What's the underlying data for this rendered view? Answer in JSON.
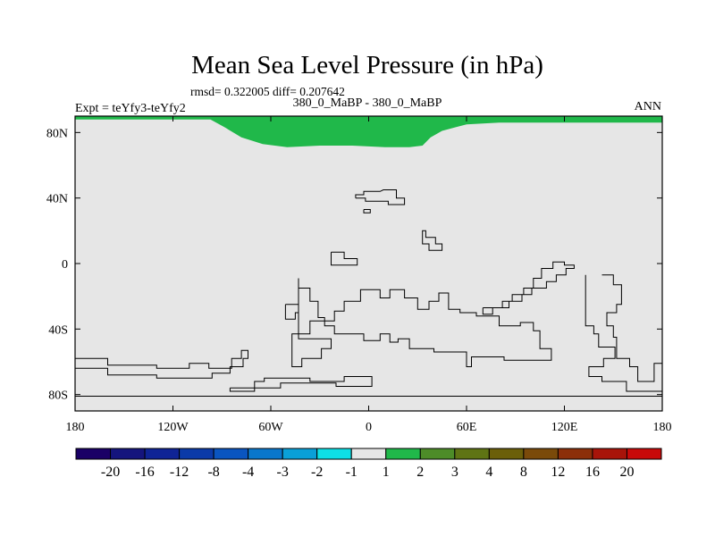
{
  "chart_data": {
    "type": "heatmap",
    "title": "Mean Sea Level Pressure (in hPa)",
    "subtitle_stats": "rmsd= 0.322005 diff= 0.207642",
    "left_label": "Expt = teYfy3-teYfy2",
    "center_label": "380_0_MaBP - 380_0_MaBP",
    "right_label": "ANN",
    "x_range": [
      -180,
      180
    ],
    "y_range": [
      -90,
      90
    ],
    "x_ticks": [
      {
        "value": -180,
        "label": "180"
      },
      {
        "value": -120,
        "label": "120W"
      },
      {
        "value": -60,
        "label": "60W"
      },
      {
        "value": 0,
        "label": "0"
      },
      {
        "value": 60,
        "label": "60E"
      },
      {
        "value": 120,
        "label": "120E"
      },
      {
        "value": 180,
        "label": "180"
      }
    ],
    "y_ticks": [
      {
        "value": 80,
        "label": "80N"
      },
      {
        "value": 40,
        "label": "40N"
      },
      {
        "value": 0,
        "label": "0"
      },
      {
        "value": -40,
        "label": "40S"
      },
      {
        "value": -80,
        "label": "80S"
      }
    ],
    "field_background": {
      "range": [
        -1,
        1
      ],
      "color": "#e6e6e6"
    },
    "field_region": {
      "range": [
        1,
        2
      ],
      "color": "#20b84a",
      "description_lon_lat_outline": [
        [
          -180,
          90
        ],
        [
          -180,
          88
        ],
        [
          -97,
          88
        ],
        [
          -88,
          83
        ],
        [
          -78,
          77
        ],
        [
          -65,
          73
        ],
        [
          -50,
          71
        ],
        [
          -30,
          72
        ],
        [
          -10,
          72
        ],
        [
          10,
          71
        ],
        [
          25,
          71
        ],
        [
          33,
          72
        ],
        [
          38,
          77
        ],
        [
          45,
          81
        ],
        [
          60,
          85
        ],
        [
          80,
          86
        ],
        [
          120,
          86
        ],
        [
          180,
          86
        ],
        [
          180,
          90
        ]
      ]
    },
    "colorbar": {
      "colors": [
        "#1a0066",
        "#15157d",
        "#0f2496",
        "#0b3aa8",
        "#0a55c0",
        "#0a77cc",
        "#0aa0d8",
        "#0ee0e6",
        "#e6e6e6",
        "#20b84a",
        "#4d8c28",
        "#5f7414",
        "#6b5f0a",
        "#7a4a0a",
        "#8c2f0a",
        "#a8140a",
        "#c80a0a"
      ],
      "labels": [
        "-20",
        "-16",
        "-12",
        "-8",
        "-4",
        "-3",
        "-2",
        "-1",
        "1",
        "2",
        "3",
        "4",
        "8",
        "12",
        "16",
        "20"
      ]
    },
    "coastlines": [
      [
        [
          -8,
          40
        ],
        [
          -8,
          42
        ],
        [
          -3,
          42
        ],
        [
          -3,
          44
        ],
        [
          7,
          44
        ],
        [
          9,
          45
        ],
        [
          17,
          45
        ],
        [
          17,
          40
        ],
        [
          22,
          40
        ],
        [
          22,
          36
        ],
        [
          12,
          36
        ],
        [
          12,
          38
        ],
        [
          -2,
          38
        ],
        [
          -2,
          40
        ],
        [
          -8,
          40
        ]
      ],
      [
        [
          -3,
          33
        ],
        [
          1,
          33
        ],
        [
          1,
          31
        ],
        [
          -3,
          31
        ],
        [
          -3,
          33
        ]
      ],
      [
        [
          33,
          16
        ],
        [
          33,
          20
        ],
        [
          35,
          20
        ],
        [
          35,
          16
        ],
        [
          41,
          16
        ],
        [
          41,
          12
        ],
        [
          45,
          12
        ],
        [
          45,
          8
        ],
        [
          37,
          8
        ],
        [
          37,
          12
        ],
        [
          33,
          12
        ],
        [
          33,
          16
        ]
      ],
      [
        [
          -23,
          7
        ],
        [
          -15,
          7
        ],
        [
          -15,
          3
        ],
        [
          -7,
          3
        ],
        [
          -7,
          -1
        ],
        [
          -23,
          -1
        ],
        [
          -23,
          7
        ]
      ],
      [
        [
          -43,
          -9
        ],
        [
          -43,
          -15
        ],
        [
          -36,
          -15
        ],
        [
          -36,
          -23
        ],
        [
          -31,
          -23
        ],
        [
          -31,
          -33
        ],
        [
          -27,
          -33
        ],
        [
          -27,
          -38
        ],
        [
          -21,
          -38
        ],
        [
          -21,
          -43
        ],
        [
          -3,
          -43
        ],
        [
          -3,
          -47
        ],
        [
          7,
          -47
        ],
        [
          7,
          -43
        ],
        [
          13,
          -43
        ],
        [
          13,
          -48
        ],
        [
          18,
          -48
        ],
        [
          18,
          -46
        ],
        [
          25,
          -46
        ],
        [
          25,
          -52
        ],
        [
          40,
          -52
        ],
        [
          40,
          -54
        ],
        [
          60,
          -54
        ],
        [
          60,
          -63
        ],
        [
          63,
          -63
        ],
        [
          63,
          -57
        ],
        [
          83,
          -57
        ],
        [
          83,
          -59
        ],
        [
          112,
          -59
        ],
        [
          112,
          -52
        ],
        [
          105,
          -52
        ],
        [
          105,
          -41
        ],
        [
          101,
          -41
        ],
        [
          101,
          -36
        ],
        [
          93,
          -36
        ],
        [
          93,
          -38
        ],
        [
          80,
          -38
        ],
        [
          80,
          -32
        ],
        [
          66,
          -32
        ],
        [
          66,
          -30
        ],
        [
          56,
          -30
        ],
        [
          56,
          -28
        ],
        [
          49,
          -28
        ],
        [
          49,
          -18
        ],
        [
          43,
          -18
        ],
        [
          43,
          -23
        ],
        [
          37,
          -23
        ],
        [
          37,
          -28
        ],
        [
          30,
          -28
        ],
        [
          30,
          -21
        ],
        [
          22,
          -21
        ],
        [
          22,
          -16
        ],
        [
          13,
          -16
        ],
        [
          13,
          -21
        ],
        [
          7,
          -21
        ],
        [
          7,
          -16
        ],
        [
          -5,
          -16
        ],
        [
          -5,
          -23
        ],
        [
          -15,
          -23
        ],
        [
          -15,
          -29
        ],
        [
          -21,
          -29
        ],
        [
          -21,
          -35
        ],
        [
          -36,
          -35
        ],
        [
          -36,
          -43
        ],
        [
          -47,
          -43
        ],
        [
          -47,
          -63
        ],
        [
          -41,
          -63
        ],
        [
          -41,
          -58
        ],
        [
          -29,
          -58
        ],
        [
          -29,
          -52
        ],
        [
          -23,
          -52
        ],
        [
          -23,
          -46
        ],
        [
          -43,
          -46
        ],
        [
          -43,
          -9
        ]
      ],
      [
        [
          -51,
          -25
        ],
        [
          -51,
          -34
        ],
        [
          -45,
          -34
        ],
        [
          -45,
          -30
        ],
        [
          -43,
          -30
        ],
        [
          -43,
          -25
        ],
        [
          -51,
          -25
        ]
      ],
      [
        [
          70,
          -27
        ],
        [
          82,
          -27
        ],
        [
          82,
          -23
        ],
        [
          88,
          -23
        ],
        [
          88,
          -19
        ],
        [
          95,
          -19
        ],
        [
          95,
          -15
        ],
        [
          101,
          -15
        ],
        [
          101,
          -9
        ],
        [
          106,
          -9
        ],
        [
          106,
          -3
        ],
        [
          113,
          -3
        ],
        [
          113,
          1
        ],
        [
          120,
          1
        ],
        [
          120,
          -1
        ],
        [
          126,
          -1
        ],
        [
          126,
          -3
        ],
        [
          121,
          -3
        ],
        [
          121,
          -7
        ],
        [
          115,
          -7
        ],
        [
          115,
          -11
        ],
        [
          109,
          -11
        ],
        [
          109,
          -15
        ],
        [
          100,
          -15
        ],
        [
          100,
          -19
        ],
        [
          94,
          -19
        ],
        [
          94,
          -23
        ],
        [
          86,
          -23
        ],
        [
          86,
          -27
        ],
        [
          76,
          -27
        ],
        [
          76,
          -31
        ],
        [
          70,
          -31
        ],
        [
          70,
          -27
        ]
      ],
      [
        [
          -180,
          -58
        ],
        [
          -160,
          -58
        ],
        [
          -160,
          -62
        ],
        [
          -130,
          -62
        ],
        [
          -130,
          -64
        ],
        [
          -110,
          -64
        ],
        [
          -110,
          -61
        ],
        [
          -98,
          -61
        ],
        [
          -98,
          -64
        ],
        [
          -84,
          -64
        ],
        [
          -84,
          -58
        ],
        [
          -78,
          -58
        ],
        [
          -78,
          -53
        ],
        [
          -74,
          -53
        ],
        [
          -74,
          -58
        ],
        [
          -77,
          -58
        ],
        [
          -77,
          -63
        ],
        [
          -85,
          -63
        ],
        [
          -85,
          -67
        ],
        [
          -96,
          -67
        ],
        [
          -96,
          -70
        ],
        [
          -130,
          -70
        ],
        [
          -130,
          -68
        ],
        [
          -160,
          -68
        ],
        [
          -160,
          -64
        ],
        [
          -180,
          -64
        ]
      ],
      [
        [
          -85,
          -76
        ],
        [
          -70,
          -76
        ],
        [
          -70,
          -72
        ],
        [
          -64,
          -72
        ],
        [
          -64,
          -70
        ],
        [
          -36,
          -70
        ],
        [
          -36,
          -72
        ],
        [
          -15,
          -72
        ],
        [
          -15,
          -69
        ],
        [
          2,
          -69
        ],
        [
          2,
          -75
        ],
        [
          -20,
          -75
        ],
        [
          -20,
          -73
        ],
        [
          -54,
          -73
        ],
        [
          -54,
          -76
        ],
        [
          -70,
          -76
        ],
        [
          -70,
          -78
        ],
        [
          -85,
          -78
        ],
        [
          -85,
          -76
        ]
      ],
      [
        [
          -180,
          -81
        ],
        [
          180,
          -81
        ]
      ],
      [
        [
          133,
          -7
        ],
        [
          133,
          -38
        ],
        [
          138,
          -38
        ],
        [
          138,
          -43
        ],
        [
          141,
          -43
        ],
        [
          141,
          -51
        ],
        [
          151,
          -51
        ],
        [
          151,
          -58
        ],
        [
          144,
          -58
        ],
        [
          144,
          -63
        ],
        [
          135,
          -63
        ],
        [
          135,
          -69
        ],
        [
          143,
          -69
        ],
        [
          143,
          -72
        ],
        [
          158,
          -72
        ],
        [
          158,
          -78
        ],
        [
          180,
          -78
        ]
      ],
      [
        [
          143,
          -7
        ],
        [
          150,
          -7
        ],
        [
          150,
          -13
        ],
        [
          155,
          -13
        ],
        [
          155,
          -25
        ],
        [
          152,
          -25
        ],
        [
          152,
          -30
        ],
        [
          146,
          -30
        ],
        [
          146,
          -38
        ],
        [
          150,
          -38
        ],
        [
          150,
          -45
        ],
        [
          152,
          -45
        ],
        [
          152,
          -58
        ],
        [
          160,
          -58
        ],
        [
          160,
          -63
        ],
        [
          165,
          -63
        ],
        [
          165,
          -72
        ],
        [
          175,
          -72
        ],
        [
          175,
          -61
        ],
        [
          180,
          -61
        ]
      ]
    ]
  }
}
